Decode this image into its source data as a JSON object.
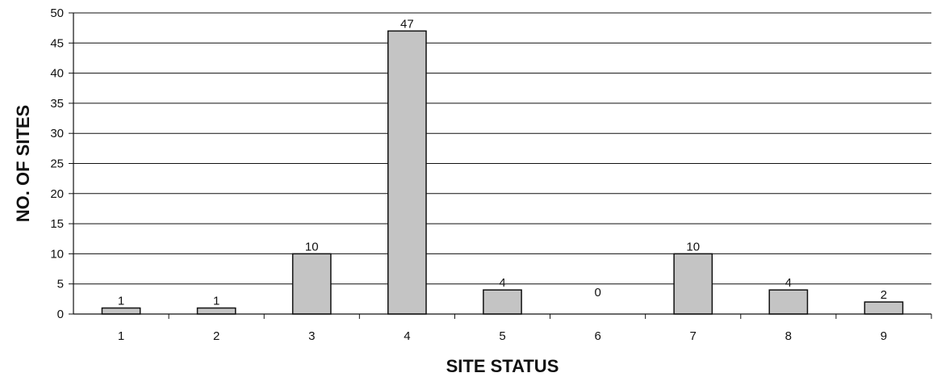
{
  "chart_data": {
    "type": "bar",
    "title": "",
    "xlabel": "SITE STATUS",
    "ylabel": "NO. OF SITES",
    "categories": [
      "1",
      "2",
      "3",
      "4",
      "5",
      "6",
      "7",
      "8",
      "9"
    ],
    "values": [
      1,
      1,
      10,
      47,
      4,
      0,
      10,
      4,
      2
    ],
    "data_labels": [
      "1",
      "1",
      "10",
      "47",
      "4",
      "0",
      "10",
      "4",
      "2"
    ],
    "ylim": [
      0,
      50
    ],
    "yticks": [
      0,
      5,
      10,
      15,
      20,
      25,
      30,
      35,
      40,
      45,
      50
    ],
    "grid": true,
    "legend": "none",
    "bar_fill": "#c4c4c4",
    "bar_stroke": "#111111",
    "grid_color": "#111111"
  }
}
